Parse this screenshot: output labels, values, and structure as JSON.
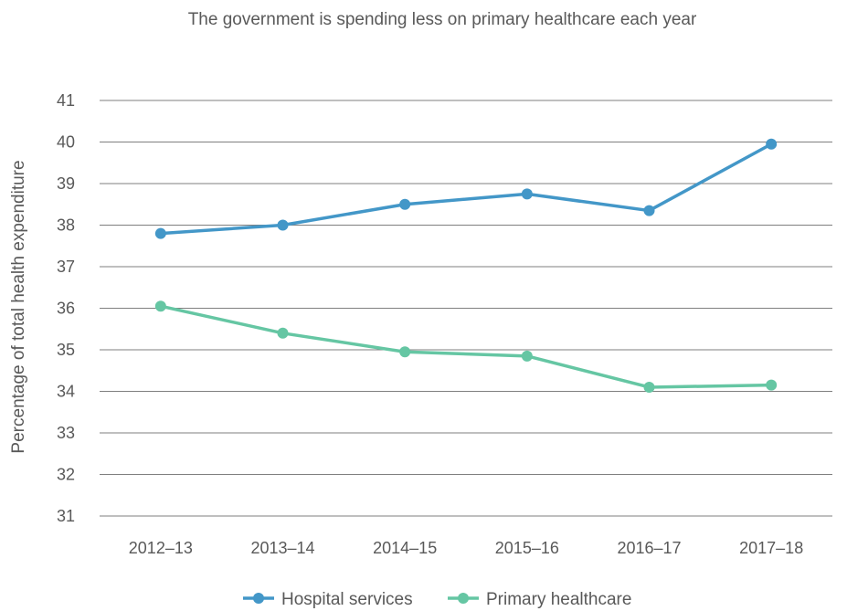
{
  "chart_data": {
    "type": "line",
    "title": "The government is spending less on primary healthcare each year",
    "xlabel": "",
    "ylabel": "Percentage of total health expenditure",
    "categories": [
      "2012–13",
      "2013–14",
      "2014–15",
      "2015–16",
      "2016–17",
      "2017–18"
    ],
    "ylim": [
      31,
      41
    ],
    "yticks": [
      31,
      32,
      33,
      34,
      35,
      36,
      37,
      38,
      39,
      40,
      41
    ],
    "grid": true,
    "legend_position": "bottom",
    "series": [
      {
        "name": "Hospital services",
        "color": "#4397c8",
        "values": [
          37.8,
          38.0,
          38.5,
          38.75,
          38.35,
          39.95
        ]
      },
      {
        "name": "Primary healthcare",
        "color": "#65c6a3",
        "values": [
          36.05,
          35.4,
          34.95,
          34.85,
          34.1,
          34.15
        ]
      }
    ]
  }
}
